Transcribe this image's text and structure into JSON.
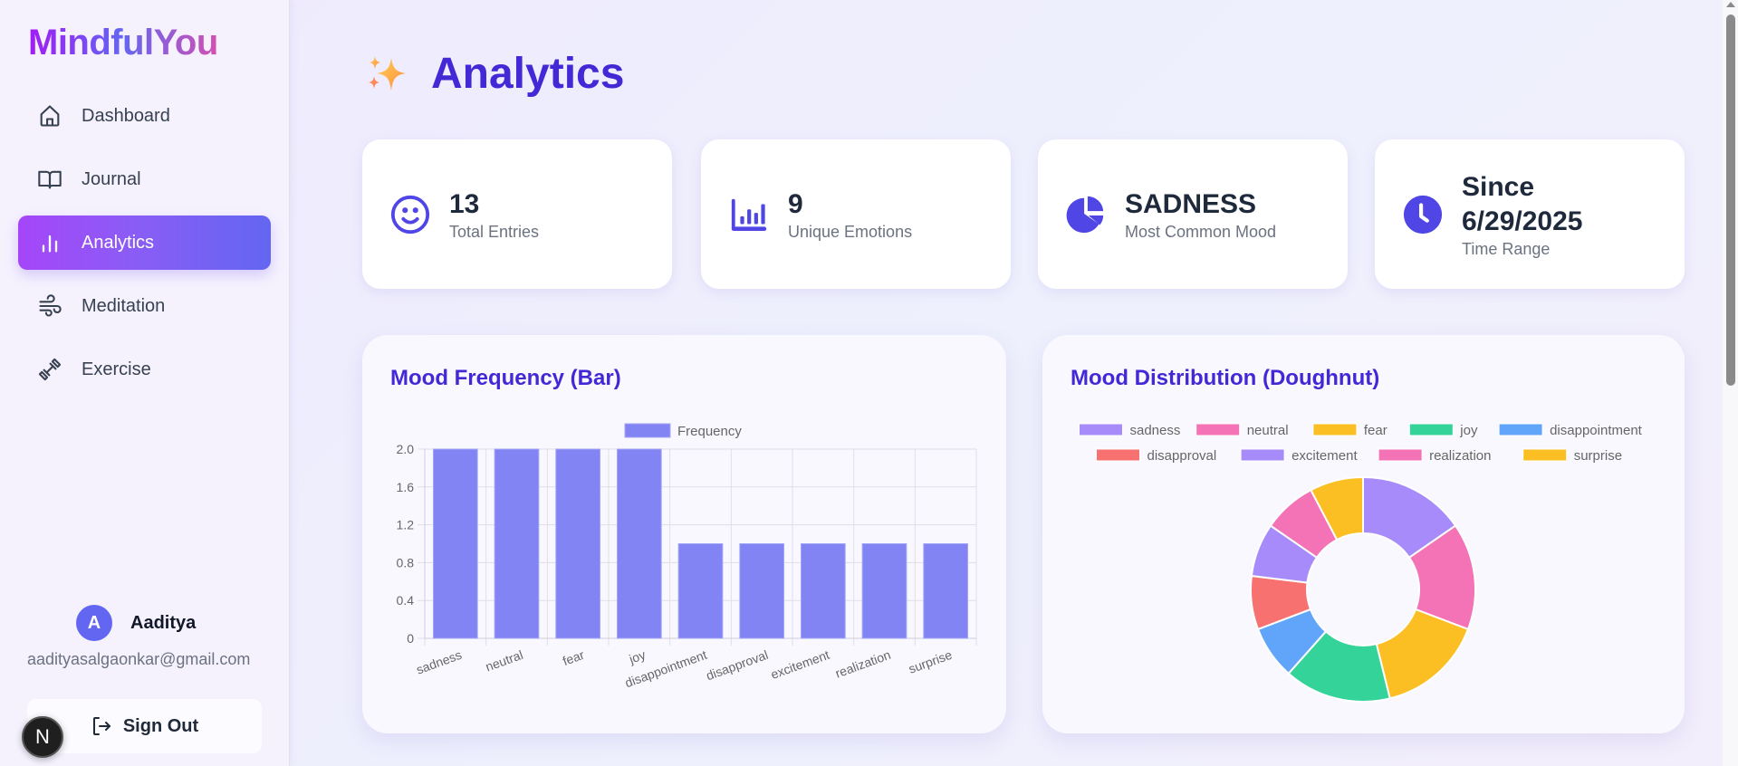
{
  "app": {
    "logo": "MindfulYou"
  },
  "sidebar": {
    "items": [
      {
        "label": "Dashboard",
        "icon": "home-icon",
        "active": false
      },
      {
        "label": "Journal",
        "icon": "book-open-icon",
        "active": false
      },
      {
        "label": "Analytics",
        "icon": "bar-chart-icon",
        "active": true
      },
      {
        "label": "Meditation",
        "icon": "wind-icon",
        "active": false
      },
      {
        "label": "Exercise",
        "icon": "dumbbell-icon",
        "active": false
      }
    ],
    "user": {
      "initial": "A",
      "name": "Aaditya",
      "email": "aadityasalgaonkar@gmail.com"
    },
    "sign_out_label": "Sign Out",
    "dev_badge": "N"
  },
  "header": {
    "emoji": "✨",
    "title": "Analytics"
  },
  "stats": [
    {
      "icon": "smile-icon",
      "value": "13",
      "label": "Total Entries"
    },
    {
      "icon": "bar-chart-icon",
      "value": "9",
      "label": "Unique Emotions"
    },
    {
      "icon": "pie-chart-icon",
      "value": "SADNESS",
      "label": "Most Common Mood"
    },
    {
      "icon": "clock-icon",
      "value_line1": "Since",
      "value_line2": "6/29/2025",
      "label": "Time Range"
    }
  ],
  "colors": {
    "accent": "#4328d6",
    "bar": "#8184f2",
    "palette": [
      "#a78bfa",
      "#f472b6",
      "#fbbf24",
      "#34d399",
      "#60a5fa",
      "#f87171",
      "#a78bfa",
      "#f472b6",
      "#fbbf24"
    ]
  },
  "chart_data": [
    {
      "type": "bar",
      "title": "Mood Frequency (Bar)",
      "legend": [
        "Frequency"
      ],
      "legend_position": "top",
      "categories": [
        "sadness",
        "neutral",
        "fear",
        "joy",
        "disappointment",
        "disapproval",
        "excitement",
        "realization",
        "surprise"
      ],
      "series": [
        {
          "name": "Frequency",
          "values": [
            2,
            2,
            2,
            2,
            1,
            1,
            1,
            1,
            1
          ]
        }
      ],
      "yticks": [
        "0",
        "0.4",
        "0.8",
        "1.2",
        "1.6",
        "2.0"
      ],
      "ylim": [
        0,
        2
      ],
      "grid": true,
      "xlabel": "",
      "ylabel": ""
    },
    {
      "type": "pie",
      "subtype": "doughnut",
      "title": "Mood Distribution (Doughnut)",
      "legend_position": "top",
      "categories": [
        "sadness",
        "neutral",
        "fear",
        "joy",
        "disappointment",
        "disapproval",
        "excitement",
        "realization",
        "surprise"
      ],
      "values": [
        2,
        2,
        2,
        2,
        1,
        1,
        1,
        1,
        1
      ]
    }
  ]
}
